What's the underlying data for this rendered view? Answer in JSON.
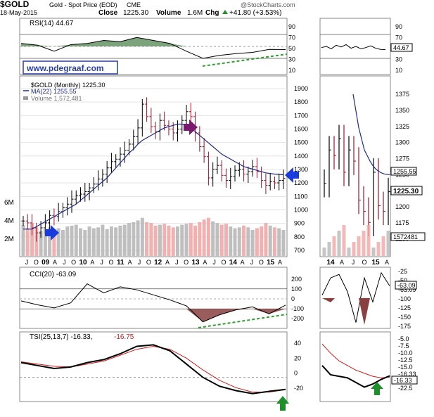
{
  "header": {
    "symbol": "$GOLD",
    "name": "Gold - Spot Price (EOD)",
    "exchange": "CME",
    "watermark": "@StockCharts.com",
    "date": "18-May-2015",
    "close_label": "Close",
    "close_value": "1225.30",
    "volume_label": "Volume",
    "volume_value": "1.6M",
    "chg_label": "Chg",
    "chg_value": "+41.80 (+3.53%)",
    "chg_arrow": "▲"
  },
  "site_label": "www.pdegraaf.com",
  "colors": {
    "up": "#000000",
    "down": "#a0112b",
    "ma": "#1f2a8f",
    "vol_up": "#b8b8b8",
    "vol_down": "#f0a8a8",
    "osc_fill": "#5b8c5a",
    "cci_neg_fill": "#8a4040",
    "trend": "#2e9e2e",
    "arrow_blue": "#1a3bdc",
    "arrow_purple": "#7a1a6e",
    "arrow_green": "#1f8f2a",
    "tsi_signal": "#d11a1a"
  },
  "icons": [
    "arrow-right-blue-icon",
    "arrow-right-purple-icon",
    "arrow-left-blue-icon",
    "arrow-up-green-icon",
    "arrow-up-green-small-icon"
  ],
  "chart_data": [
    {
      "type": "line",
      "panel": "rsi",
      "legend": "RSI(14) 44.67",
      "y_ticks": [
        "90",
        "70",
        "50",
        "30",
        "10"
      ],
      "ylim": [
        10,
        90
      ],
      "levels": [
        70,
        30
      ],
      "side_value": "44.67",
      "x": [
        "2008-06",
        "2008-09",
        "2009-01",
        "2009-06",
        "2010-01",
        "2010-06",
        "2011-01",
        "2011-06",
        "2012-01",
        "2012-06",
        "2013-01",
        "2013-04",
        "2013-07",
        "2014-01",
        "2014-06",
        "2015-01",
        "2015-05"
      ],
      "values": [
        55,
        52,
        42,
        53,
        55,
        60,
        58,
        65,
        60,
        55,
        42,
        30,
        35,
        38,
        40,
        45,
        44.67
      ]
    },
    {
      "type": "ohlc",
      "panel": "price",
      "legend_symbol": "$GOLD (Monthly) 1225.30",
      "legend_ma": "MA(22) 1255.55",
      "legend_volume": "Volume 1,572,481",
      "y_ticks": [
        "1900",
        "1800",
        "1700",
        "1600",
        "1500",
        "1400",
        "1300",
        "1200",
        "1100",
        "1000",
        "900",
        "800",
        "700"
      ],
      "ylim": [
        650,
        1950
      ],
      "volume_ticks": [
        "6M",
        "4M",
        "2M"
      ],
      "x_ticks": [
        "J",
        "O",
        "09",
        "A",
        "J",
        "O",
        "10",
        "A",
        "J",
        "O",
        "11",
        "A",
        "J",
        "O",
        "12",
        "A",
        "J",
        "O",
        "13",
        "A",
        "J",
        "O",
        "14",
        "A",
        "J",
        "O",
        "15",
        "A"
      ],
      "ma_value_label": "1255.55",
      "close_value_label": "1225.30",
      "side_volume_label": "1572481",
      "side_y_ticks": [
        "1375",
        "1350",
        "1325",
        "1300",
        "1275",
        "1250",
        "1225",
        "1200",
        "1175",
        "1150"
      ],
      "side_ylim": [
        1140,
        1400
      ],
      "side_x_ticks": [
        "14",
        "A",
        "J",
        "O",
        "15",
        "A"
      ],
      "close": [
        885,
        870,
        830,
        790,
        830,
        870,
        930,
        920,
        960,
        990,
        1020,
        1060,
        1090,
        1100,
        1120,
        1150,
        1180,
        1220,
        1260,
        1310,
        1360,
        1380,
        1420,
        1450,
        1500,
        1560,
        1630,
        1820,
        1720,
        1640,
        1600,
        1690,
        1650,
        1620,
        1590,
        1620,
        1690,
        1760,
        1720,
        1590,
        1480,
        1400,
        1230,
        1300,
        1330,
        1250,
        1210,
        1240,
        1290,
        1300,
        1260,
        1280,
        1320,
        1280,
        1210,
        1170,
        1200,
        1190,
        1210,
        1225
      ],
      "ma": [
        820,
        820,
        820,
        840,
        860,
        880,
        900,
        920,
        940,
        960,
        980,
        1000,
        1020,
        1050,
        1080,
        1110,
        1140,
        1170,
        1200,
        1230,
        1270,
        1310,
        1350,
        1390,
        1430,
        1460,
        1500,
        1530,
        1550,
        1570,
        1590,
        1610,
        1630,
        1640,
        1650,
        1660,
        1660,
        1650,
        1630,
        1600,
        1570,
        1540,
        1510,
        1480,
        1450,
        1420,
        1400,
        1380,
        1360,
        1340,
        1320,
        1310,
        1300,
        1290,
        1280,
        1270,
        1265,
        1260,
        1257,
        1255.55
      ],
      "volume": [
        3.6,
        3.2,
        3.8,
        3.3,
        2.9,
        3.1,
        3.3,
        2.8,
        3.2,
        3.0,
        3.4,
        3.5,
        3.6,
        3.2,
        3.0,
        3.4,
        3.2,
        3.3,
        3.6,
        3.1,
        3.4,
        3.3,
        3.5,
        3.6,
        3.8,
        3.9,
        4.1,
        4.4,
        3.9,
        3.8,
        3.5,
        3.6,
        3.7,
        3.5,
        3.3,
        3.4,
        3.6,
        3.7,
        3.8,
        3.5,
        3.9,
        4.2,
        4.4,
        4.0,
        3.8,
        3.6,
        3.7,
        3.4,
        3.2,
        3.3,
        3.5,
        3.3,
        3.0,
        3.2,
        3.4,
        3.8,
        3.5,
        3.3,
        3.2,
        3.0
      ]
    },
    {
      "type": "line",
      "panel": "cci",
      "legend": "CCI(20) -63.09",
      "y_ticks": [
        "200",
        "100",
        "0",
        "-100",
        "-200"
      ],
      "ylim": [
        -260,
        260
      ],
      "levels": [
        100,
        0,
        -100
      ],
      "side_y_ticks": [
        "-25",
        "-50",
        "-63.09",
        "-100",
        "-125",
        "-150",
        "-175"
      ],
      "side_ylim": [
        -185,
        -15
      ],
      "x": [
        "2008-06",
        "2008-09",
        "2009-01",
        "2009-06",
        "2010-01",
        "2010-06",
        "2011-01",
        "2011-06",
        "2012-01",
        "2012-06",
        "2013-01",
        "2013-04",
        "2013-07",
        "2014-01",
        "2014-06",
        "2015-01",
        "2015-05"
      ],
      "values": [
        -20,
        -60,
        -90,
        -40,
        150,
        60,
        120,
        90,
        40,
        -10,
        -70,
        -230,
        -160,
        -110,
        -80,
        -150,
        -63.09
      ]
    },
    {
      "type": "line",
      "panel": "tsi",
      "legend_tsi": "TSI(25,13,7) -16.33,",
      "legend_signal": "-16.75",
      "y_ticks": [
        "40",
        "20",
        "0",
        "-20"
      ],
      "ylim": [
        -28,
        52
      ],
      "side_y_ticks": [
        "-5.0",
        "-7.5",
        "-10.0",
        "-12.5",
        "-15.0",
        "-16.33",
        "-20.0",
        "-22.5"
      ],
      "side_ylim": [
        -24,
        -3
      ],
      "x": [
        "2008-06",
        "2008-09",
        "2009-01",
        "2009-06",
        "2010-01",
        "2010-06",
        "2011-01",
        "2011-06",
        "2012-01",
        "2012-06",
        "2013-01",
        "2013-04",
        "2013-07",
        "2014-01",
        "2014-06",
        "2015-01",
        "2015-05"
      ],
      "tsi": [
        20,
        16,
        12,
        14,
        20,
        24,
        32,
        42,
        44,
        36,
        18,
        0,
        -12,
        -18,
        -22,
        -19,
        -16.33
      ],
      "signal": [
        21,
        18,
        15,
        14,
        18,
        22,
        30,
        38,
        42,
        38,
        26,
        10,
        -4,
        -14,
        -20,
        -20,
        -16.75
      ]
    }
  ]
}
